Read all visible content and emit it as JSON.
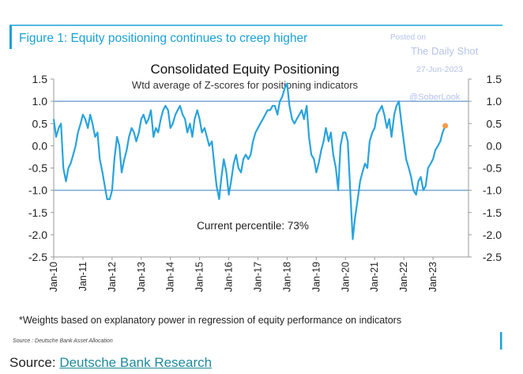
{
  "figure_title": "Figure 1: Equity positioning continues to creep higher",
  "watermark": {
    "line1": "Posted on",
    "line2": "The Daily Shot",
    "line3": "27-Jun-2023",
    "handle": "@SoberLook"
  },
  "footnote": "*Weights based on explanatory power in regression of equity performance on indicators",
  "source_small": "Source : Deutsche Bank Asset Allocation",
  "source_prefix": "Source: ",
  "source_link": "Deutsche Bank Research",
  "colors": {
    "series": "#29a3dc",
    "accent": "#1ba1d6",
    "marker": "#f29a4a",
    "refline": "#7aa7d4"
  },
  "chart_data": {
    "type": "line",
    "title": "Consolidated Equity Positioning",
    "subtitle": "Wtd average of Z-scores for positioning indicators",
    "annotation": "Current percentile: 73%",
    "ylim": [
      -2.5,
      1.5
    ],
    "yticks": [
      "1.5",
      "1.0",
      "0.5",
      "0.0",
      "-0.5",
      "-1.0",
      "-1.5",
      "-2.0",
      "-2.5"
    ],
    "xticks": [
      "Jan-10",
      "Jan-11",
      "Jan-12",
      "Jan-13",
      "Jan-14",
      "Jan-15",
      "Jan-16",
      "Jan-17",
      "Jan-18",
      "Jan-19",
      "Jan-20",
      "Jan-21",
      "Jan-22",
      "Jan-23"
    ],
    "reference_lines": [
      1.0,
      -1.0
    ],
    "grid": false,
    "series": [
      {
        "x": [
          2010.0,
          2010.08,
          2010.17,
          2010.25,
          2010.33,
          2010.42,
          2010.5,
          2010.58,
          2010.67,
          2010.75,
          2010.83,
          2010.92,
          2011.0,
          2011.08,
          2011.17,
          2011.25,
          2011.33,
          2011.42,
          2011.5,
          2011.58,
          2011.67,
          2011.75,
          2011.83,
          2011.92,
          2012.0,
          2012.08,
          2012.17,
          2012.25,
          2012.33,
          2012.42,
          2012.5,
          2012.58,
          2012.67,
          2012.75,
          2012.83,
          2012.92,
          2013.0,
          2013.08,
          2013.17,
          2013.25,
          2013.33,
          2013.42,
          2013.5,
          2013.58,
          2013.67,
          2013.75,
          2013.83,
          2013.92,
          2014.0,
          2014.08,
          2014.17,
          2014.25,
          2014.33,
          2014.42,
          2014.5,
          2014.58,
          2014.67,
          2014.75,
          2014.83,
          2014.92,
          2015.0,
          2015.08,
          2015.17,
          2015.25,
          2015.33,
          2015.42,
          2015.5,
          2015.58,
          2015.67,
          2015.75,
          2015.83,
          2015.92,
          2016.0,
          2016.08,
          2016.17,
          2016.25,
          2016.33,
          2016.42,
          2016.5,
          2016.58,
          2016.67,
          2016.75,
          2016.83,
          2016.92,
          2017.0,
          2017.08,
          2017.17,
          2017.25,
          2017.33,
          2017.42,
          2017.5,
          2017.58,
          2017.67,
          2017.75,
          2017.83,
          2017.92,
          2018.0,
          2018.08,
          2018.17,
          2018.25,
          2018.33,
          2018.42,
          2018.5,
          2018.58,
          2018.67,
          2018.75,
          2018.83,
          2018.92,
          2019.0,
          2019.08,
          2019.17,
          2019.25,
          2019.33,
          2019.42,
          2019.5,
          2019.58,
          2019.67,
          2019.75,
          2019.83,
          2019.92,
          2020.0,
          2020.08,
          2020.17,
          2020.25,
          2020.33,
          2020.42,
          2020.5,
          2020.58,
          2020.67,
          2020.75,
          2020.83,
          2020.92,
          2021.0,
          2021.08,
          2021.17,
          2021.25,
          2021.33,
          2021.42,
          2021.5,
          2021.58,
          2021.67,
          2021.75,
          2021.83,
          2021.92,
          2022.0,
          2022.08,
          2022.17,
          2022.25,
          2022.33,
          2022.42,
          2022.5,
          2022.58,
          2022.67,
          2022.75,
          2022.83,
          2022.92,
          2023.0,
          2023.08,
          2023.17,
          2023.25,
          2023.33,
          2023.42
        ],
        "y": [
          0.6,
          0.2,
          0.4,
          0.5,
          -0.5,
          -0.8,
          -0.5,
          -0.4,
          -0.2,
          0.0,
          0.3,
          0.5,
          0.7,
          0.6,
          0.4,
          0.7,
          0.5,
          0.2,
          0.3,
          -0.3,
          -0.6,
          -0.9,
          -1.2,
          -1.2,
          -1.0,
          -0.3,
          0.2,
          0.0,
          -0.6,
          -0.3,
          -0.1,
          0.2,
          0.4,
          0.3,
          0.1,
          0.3,
          0.6,
          0.7,
          0.5,
          0.6,
          0.8,
          0.2,
          0.4,
          0.3,
          0.6,
          0.8,
          0.9,
          0.8,
          0.4,
          0.5,
          0.7,
          0.8,
          0.9,
          0.7,
          0.6,
          0.3,
          0.5,
          0.2,
          0.6,
          0.8,
          0.6,
          0.3,
          0.4,
          0.2,
          0.0,
          0.1,
          -0.4,
          -0.9,
          -1.2,
          -0.7,
          -0.3,
          -0.6,
          -1.1,
          -0.8,
          -0.4,
          -0.2,
          -0.5,
          -0.6,
          -0.3,
          -0.2,
          -0.3,
          -0.2,
          0.1,
          0.3,
          0.4,
          0.5,
          0.6,
          0.7,
          0.8,
          0.8,
          0.9,
          0.9,
          0.7,
          1.0,
          1.1,
          1.3,
          1.4,
          0.9,
          0.6,
          0.5,
          0.6,
          0.7,
          0.8,
          0.6,
          0.9,
          0.2,
          -0.2,
          -0.3,
          -0.6,
          -0.4,
          -0.1,
          0.1,
          0.4,
          0.1,
          0.3,
          -0.2,
          -0.5,
          -1.0,
          0.0,
          0.3,
          0.3,
          0.1,
          -1.1,
          -2.1,
          -1.6,
          -1.2,
          -0.8,
          -0.6,
          -0.4,
          -0.5,
          0.1,
          0.3,
          0.4,
          0.7,
          0.8,
          0.9,
          0.7,
          0.4,
          0.6,
          0.2,
          0.7,
          0.9,
          1.0,
          0.5,
          0.1,
          -0.3,
          -0.5,
          -0.7,
          -1.0,
          -1.1,
          -0.8,
          -0.7,
          -1.0,
          -0.9,
          -0.5,
          -0.4,
          -0.3,
          -0.1,
          0.0,
          0.1,
          0.3,
          0.45
        ]
      }
    ],
    "last_point": {
      "x": 2023.42,
      "y": 0.45
    }
  }
}
